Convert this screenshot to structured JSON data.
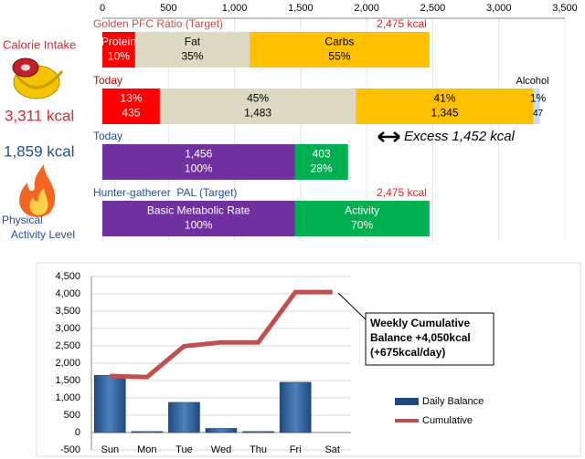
{
  "sidebar": {
    "intake_label": "Calorie Intake",
    "intake_value": "3,311 kcal",
    "burn_value": "1,859 kcal",
    "activity_label": [
      "Physical",
      "Activity Level"
    ]
  },
  "chart_data": [
    {
      "type": "bar",
      "orientation": "horizontal",
      "stacked": true,
      "xlim": [
        0,
        3500
      ],
      "xticks": [
        0,
        500,
        {
          "value": 1000,
          "label": "1,000"
        },
        {
          "value": 1500,
          "label": "1,500"
        },
        {
          "value": 2000,
          "label": "2,000"
        },
        {
          "value": 2500,
          "label": "2,500"
        },
        {
          "value": 3000,
          "label": "3,000"
        },
        {
          "value": 3500,
          "label": "3,500"
        }
      ],
      "grid": true,
      "annotation": "Excess 1,452 kcal",
      "rows": [
        {
          "label": "Golden PFC Ratio (Target)",
          "label_color": "#c0504d",
          "total_label": "2,475 kcal",
          "segments": [
            {
              "name": "Protein",
              "pct_label": "10%",
              "value": 248,
              "color": "#ff0000"
            },
            {
              "name": "Fat",
              "pct_label": "35%",
              "value": 866,
              "color": "#ddd9c3"
            },
            {
              "name": "Carbs",
              "pct_label": "55%",
              "value": 1361,
              "color": "#ffc000"
            }
          ]
        },
        {
          "label": "Today",
          "label_color": "#c00000",
          "segments": [
            {
              "pct_label": "13%",
              "value_label": "435",
              "value": 435,
              "color": "#ff0000"
            },
            {
              "pct_label": "45%",
              "value_label": "1,483",
              "value": 1483,
              "color": "#ddd9c3"
            },
            {
              "pct_label": "41%",
              "value_label": "1,345",
              "value": 1345,
              "color": "#ffc000"
            },
            {
              "name": "Alcohol",
              "pct_label": "1%",
              "value_label": "47",
              "value": 47,
              "color": "#c6d9f1"
            }
          ]
        },
        {
          "label": "Today",
          "label_color": "#1f4e99",
          "segments": [
            {
              "value_label": "1,456",
              "pct_label": "100%",
              "value": 1456,
              "color": "#7030a0"
            },
            {
              "value_label": "403",
              "pct_label": "28%",
              "value": 403,
              "color": "#00b050"
            }
          ]
        },
        {
          "label": "Hunter-gatherer  PAL (Target)",
          "label_color": "#1f4e99",
          "total_label": "2,475 kcal",
          "segments": [
            {
              "name": "Basic Metabolic Rate",
              "pct_label": "100%",
              "value": 1456,
              "color": "#7030a0"
            },
            {
              "name": "Activity",
              "pct_label": "70%",
              "value": 1019,
              "color": "#00b050"
            }
          ]
        }
      ]
    },
    {
      "type": "combo",
      "categories": [
        "Sun",
        "Mon",
        "Tue",
        "Wed",
        "Thu",
        "Fri",
        "Sat"
      ],
      "series": [
        {
          "name": "Daily Balance",
          "type": "bar",
          "color": "#1f497d",
          "values": [
            1650,
            30,
            870,
            120,
            30,
            1450,
            null
          ]
        },
        {
          "name": "Cumulative",
          "type": "line",
          "color": "#c0504d",
          "values": [
            1630,
            1600,
            2490,
            2600,
            2600,
            4050,
            4050
          ]
        }
      ],
      "ylim": [
        -500,
        4500
      ],
      "yticks": [
        -500,
        0,
        500,
        {
          "value": 1000,
          "label": "1,000"
        },
        {
          "value": 1500,
          "label": "1,500"
        },
        {
          "value": 2000,
          "label": "2,000"
        },
        {
          "value": 2500,
          "label": "2,500"
        },
        {
          "value": 3000,
          "label": "3,000"
        },
        {
          "value": 3500,
          "label": "3,500"
        },
        {
          "value": 4000,
          "label": "4,000"
        },
        {
          "value": 4500,
          "label": "4,500"
        }
      ],
      "grid": true,
      "legend": "right",
      "annotation": [
        "Weekly Cumulative",
        "Balance +4,050kcal",
        "(+675kcal/day)"
      ]
    }
  ]
}
